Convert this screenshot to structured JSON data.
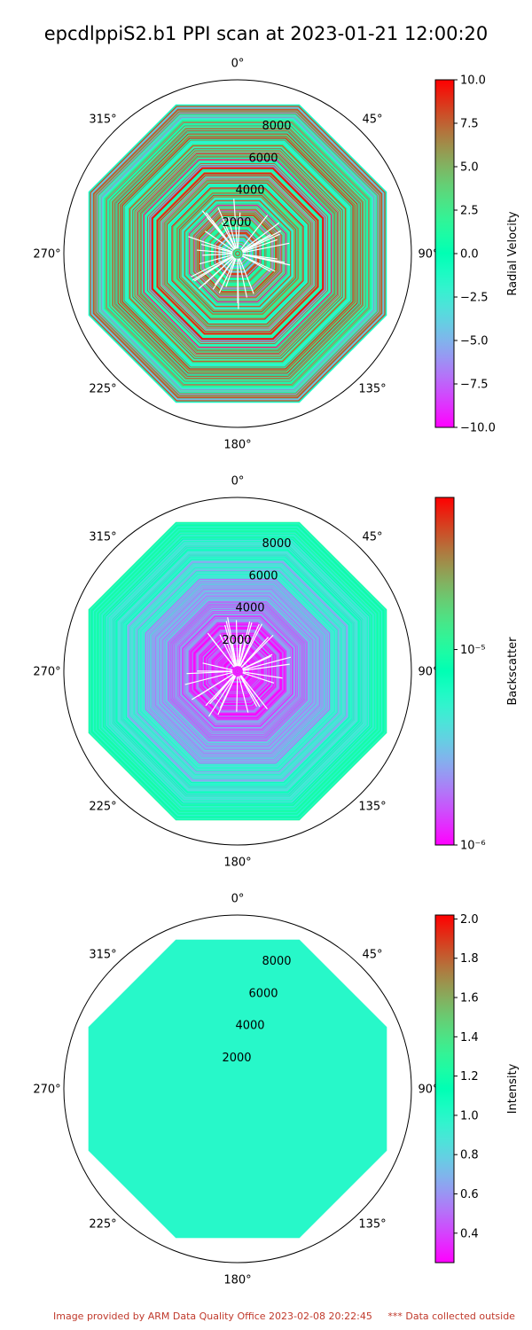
{
  "title": "epcdlppiS2.b1 PPI scan at 2023-01-21 12:00:20",
  "footer": {
    "provided": "Image provided by ARM Data Quality Office 2023-02-08 20:22:45",
    "warning": "*** Data collected outside"
  },
  "chart_data": [
    {
      "type": "heatmap",
      "projection": "polar",
      "variable": "Radial Velocity",
      "colormap": "rainbow",
      "color_scale": "linear",
      "clim": [
        -10,
        10
      ],
      "colorbar_ticks": [
        "10.0",
        "7.5",
        "5.0",
        "2.5",
        "0.0",
        "−2.5",
        "−5.0",
        "−7.5",
        "−10.0"
      ],
      "colorbar_values": [
        10,
        7.5,
        5,
        2.5,
        0,
        -2.5,
        -5,
        -7.5,
        -10
      ],
      "theta_ticks": [
        "0°",
        "45°",
        "90°",
        "135°",
        "180°",
        "225°",
        "270°",
        "315°"
      ],
      "radial_ticks": [
        "2000",
        "4000",
        "6000",
        "8000"
      ],
      "radial_values": [
        2000,
        4000,
        6000,
        8000
      ],
      "rmax": 10000,
      "field_extent": 9300,
      "field_description": "mixed velocities, noisy stripes across full range"
    },
    {
      "type": "heatmap",
      "projection": "polar",
      "variable": "Backscatter",
      "colormap": "rainbow",
      "color_scale": "log",
      "clim": [
        1e-06,
        6e-05
      ],
      "colorbar_ticks": [
        "10⁻⁵",
        "10⁻⁶"
      ],
      "colorbar_values": [
        1e-05,
        1e-06
      ],
      "theta_ticks": [
        "0°",
        "45°",
        "90°",
        "135°",
        "180°",
        "225°",
        "270°",
        "315°"
      ],
      "radial_ticks": [
        "2000",
        "4000",
        "6000",
        "8000"
      ],
      "radial_values": [
        2000,
        4000,
        6000,
        8000
      ],
      "rmax": 10000,
      "field_extent": 9300,
      "field_description": "near 1e-06 close to radar, rising toward ~5e-06 at outer ranges"
    },
    {
      "type": "heatmap",
      "projection": "polar",
      "variable": "Intensity",
      "colormap": "rainbow",
      "color_scale": "linear",
      "clim": [
        0.25,
        2.02
      ],
      "colorbar_ticks": [
        "2.0",
        "1.8",
        "1.6",
        "1.4",
        "1.2",
        "1.0",
        "0.8",
        "0.6",
        "0.4"
      ],
      "colorbar_values": [
        2.0,
        1.8,
        1.6,
        1.4,
        1.2,
        1.0,
        0.8,
        0.6,
        0.4
      ],
      "theta_ticks": [
        "0°",
        "45°",
        "90°",
        "135°",
        "180°",
        "225°",
        "270°",
        "315°"
      ],
      "radial_ticks": [
        "2000",
        "4000",
        "6000",
        "8000"
      ],
      "radial_values": [
        2000,
        4000,
        6000,
        8000
      ],
      "rmax": 10000,
      "field_extent": 9300,
      "field_value": 1.0
    }
  ]
}
